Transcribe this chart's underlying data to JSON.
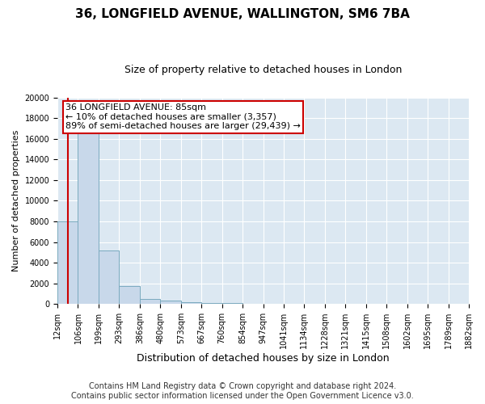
{
  "title": "36, LONGFIELD AVENUE, WALLINGTON, SM6 7BA",
  "subtitle": "Size of property relative to detached houses in London",
  "xlabel": "Distribution of detached houses by size in London",
  "ylabel": "Number of detached properties",
  "bar_values": [
    8000,
    16500,
    5200,
    1750,
    500,
    300,
    175,
    120,
    80,
    50,
    0,
    0,
    0,
    0,
    0,
    0,
    0,
    0,
    0,
    0
  ],
  "bar_labels": [
    "12sqm",
    "106sqm",
    "199sqm",
    "293sqm",
    "386sqm",
    "480sqm",
    "573sqm",
    "667sqm",
    "760sqm",
    "854sqm",
    "947sqm",
    "1041sqm",
    "1134sqm",
    "1228sqm",
    "1321sqm",
    "1415sqm",
    "1508sqm",
    "1602sqm",
    "1695sqm",
    "1789sqm",
    "1882sqm"
  ],
  "bar_color": "#c8d8ea",
  "bar_edge_color": "#7aaabf",
  "bar_edge_width": 0.7,
  "ylim": [
    0,
    20000
  ],
  "yticks": [
    0,
    2000,
    4000,
    6000,
    8000,
    10000,
    12000,
    14000,
    16000,
    18000,
    20000
  ],
  "vline_color": "#cc0000",
  "vline_x": 0.5,
  "annotation_line1": "36 LONGFIELD AVENUE: 85sqm",
  "annotation_line2": "← 10% of detached houses are smaller (3,357)",
  "annotation_line3": "89% of semi-detached houses are larger (29,439) →",
  "annotation_box_color": "#cc0000",
  "footer_line1": "Contains HM Land Registry data © Crown copyright and database right 2024.",
  "footer_line2": "Contains public sector information licensed under the Open Government Licence v3.0.",
  "bg_color": "#dce8f2",
  "grid_color": "white",
  "title_fontsize": 11,
  "subtitle_fontsize": 9,
  "xlabel_fontsize": 9,
  "ylabel_fontsize": 8,
  "tick_fontsize": 7,
  "footer_fontsize": 7,
  "annotation_fontsize": 8
}
